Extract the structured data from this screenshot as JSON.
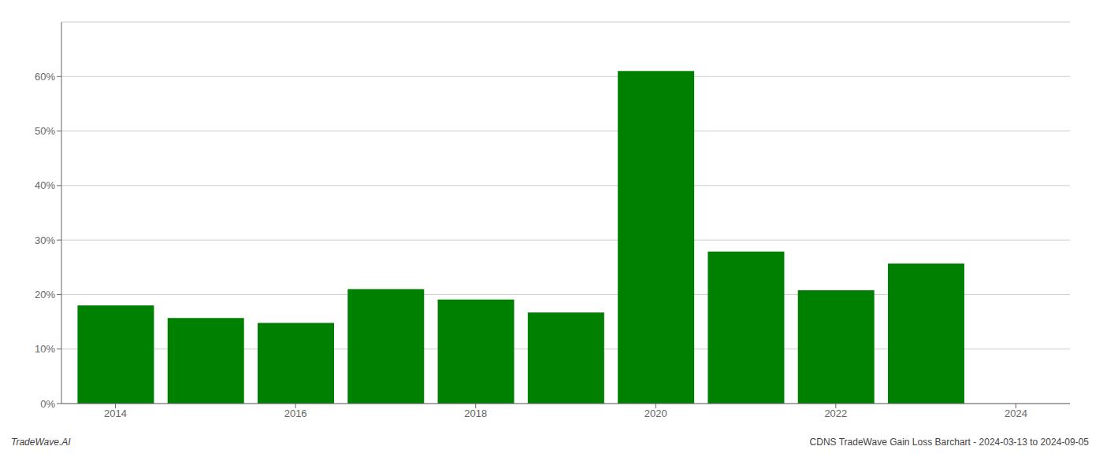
{
  "chart_data": {
    "type": "bar",
    "x": [
      2014,
      2015,
      2016,
      2017,
      2018,
      2019,
      2020,
      2021,
      2022,
      2023,
      2024
    ],
    "values": [
      0.18,
      0.157,
      0.148,
      0.21,
      0.191,
      0.167,
      0.61,
      0.279,
      0.208,
      0.257,
      null
    ],
    "color": "#008000",
    "xlim": [
      2013.4,
      2024.6
    ],
    "xticks": [
      2014,
      2016,
      2018,
      2020,
      2022,
      2024
    ],
    "ylim": [
      0,
      0.7
    ],
    "yticks": [
      {
        "value": 0.0,
        "label": "0%"
      },
      {
        "value": 0.1,
        "label": "10%"
      },
      {
        "value": 0.2,
        "label": "20%"
      },
      {
        "value": 0.3,
        "label": "30%"
      },
      {
        "value": 0.4,
        "label": "40%"
      },
      {
        "value": 0.5,
        "label": "50%"
      },
      {
        "value": 0.6,
        "label": "60%"
      }
    ],
    "grid": true,
    "annotations": [
      "TradeWave.AI",
      "CDNS TradeWave Gain Loss Barchart - 2024-03-13 to 2024-09-05"
    ]
  }
}
